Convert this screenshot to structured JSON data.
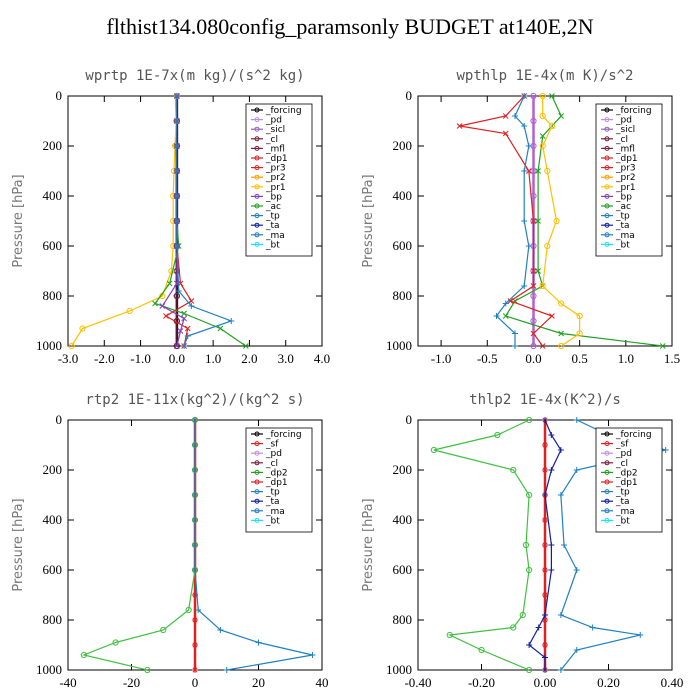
{
  "title": "flthist134.080config_paramsonly  BUDGET at140E,2N",
  "chart_data": [
    {
      "type": "line",
      "title": "wprtp  1E-7x(m kg)/(s^2 kg)",
      "ylabel": "Pressure [hPa]",
      "xlim": [
        -3.0,
        4.0
      ],
      "ylim": [
        1000,
        0
      ],
      "xticks": [
        "-3.0",
        "-2.0",
        "-1.0",
        "0.0",
        "1.0",
        "2.0",
        "3.0",
        "4.0"
      ],
      "xtick_values": [
        -3,
        -2,
        -1,
        0,
        1,
        2,
        3,
        4
      ],
      "yticks": [
        "0",
        "200",
        "400",
        "600",
        "800",
        "1000"
      ],
      "ytick_values": [
        0,
        200,
        400,
        600,
        800,
        1000
      ],
      "legend_position": "top-right",
      "legend": [
        "_forcing",
        "_pd",
        "_sicl",
        "_cl",
        "_mfl",
        "_dp1",
        "_pr3",
        "_pr2",
        "_pr1",
        "_bp",
        "_ac",
        "_tp",
        "_ta",
        "_ma",
        "_bt"
      ],
      "series": [
        {
          "name": "_forcing",
          "color": "#000000",
          "marker": "o",
          "x": [
            0,
            0,
            0,
            0,
            0,
            0,
            0,
            0,
            0,
            0,
            0
          ],
          "y": [
            0,
            100,
            200,
            300,
            400,
            500,
            600,
            700,
            800,
            900,
            1000
          ]
        },
        {
          "name": "_mfl",
          "color": "#7a2040",
          "marker": "o",
          "x": [
            0,
            0,
            0,
            0,
            0,
            0,
            0,
            0,
            0,
            0,
            0
          ],
          "y": [
            0,
            100,
            200,
            300,
            400,
            500,
            600,
            700,
            800,
            900,
            1000
          ]
        },
        {
          "name": "_pr1",
          "color": "#ffc000",
          "marker": "o",
          "x": [
            0,
            -0.02,
            -0.05,
            -0.08,
            -0.1,
            -0.1,
            -0.1,
            -0.15,
            -0.4,
            -1.3,
            -2.6,
            -2.9
          ],
          "y": [
            0,
            100,
            200,
            300,
            400,
            500,
            600,
            700,
            800,
            860,
            930,
            1000
          ]
        },
        {
          "name": "_ac",
          "color": "#20a020",
          "marker": "x",
          "x": [
            0,
            0,
            0,
            0,
            0,
            0,
            0.05,
            -0.2,
            -0.6,
            0.2,
            1.2,
            1.9
          ],
          "y": [
            0,
            100,
            200,
            300,
            400,
            500,
            600,
            750,
            830,
            870,
            930,
            1000
          ]
        },
        {
          "name": "_dp1",
          "color": "#e02020",
          "marker": "x",
          "x": [
            0,
            0,
            0,
            0,
            0,
            0,
            0,
            0.1,
            0.4,
            -0.3,
            0.3,
            0.2
          ],
          "y": [
            0,
            100,
            200,
            300,
            400,
            500,
            600,
            750,
            820,
            880,
            930,
            1000
          ]
        },
        {
          "name": "_bp",
          "color": "#8040c0",
          "marker": "x",
          "x": [
            0,
            0,
            0,
            0,
            0,
            0,
            0,
            0,
            -0.4,
            0.2,
            0.1,
            0
          ],
          "y": [
            0,
            100,
            200,
            300,
            400,
            500,
            600,
            750,
            840,
            890,
            940,
            1000
          ]
        },
        {
          "name": "_tp",
          "color": "#2080c0",
          "marker": "+",
          "x": [
            0,
            0,
            0,
            0,
            0,
            0,
            0,
            0.05,
            0.4,
            1.5,
            0.3,
            0.2
          ],
          "y": [
            0,
            100,
            200,
            300,
            400,
            500,
            600,
            780,
            840,
            900,
            960,
            1000
          ]
        }
      ]
    },
    {
      "type": "line",
      "title": "wpthlp  1E-4x(m K)/s^2",
      "ylabel": "Pressure [hPa]",
      "xlim": [
        -1.25,
        1.5
      ],
      "ylim": [
        1000,
        0
      ],
      "xticks": [
        "-1.0",
        "-0.5",
        "0.0",
        "0.5",
        "1.0",
        "1.5"
      ],
      "xtick_values": [
        -1,
        -0.5,
        0,
        0.5,
        1,
        1.5
      ],
      "yticks": [
        "0",
        "200",
        "400",
        "600",
        "800",
        "1000"
      ],
      "ytick_values": [
        0,
        200,
        400,
        600,
        800,
        1000
      ],
      "legend_position": "top-right",
      "legend": [
        "_forcing",
        "_pd",
        "_sicl",
        "_cl",
        "_mfl",
        "_dp1",
        "_pr3",
        "_pr2",
        "_pr1",
        "_bp",
        "_ac",
        "_tp",
        "_ta",
        "_ma",
        "_bt"
      ],
      "series": [
        {
          "name": "_forcing",
          "color": "#b060d0",
          "marker": "o",
          "x": [
            0,
            0,
            0,
            0,
            0,
            0,
            0,
            0,
            0,
            0,
            0
          ],
          "y": [
            0,
            100,
            200,
            300,
            400,
            500,
            600,
            700,
            800,
            900,
            1000
          ]
        },
        {
          "name": "_ac",
          "color": "#20a020",
          "marker": "x",
          "x": [
            0.2,
            0.3,
            0.2,
            0.1,
            0.05,
            0.05,
            0.05,
            0.1,
            -0.2,
            -0.3,
            0.3,
            1.4
          ],
          "y": [
            0,
            80,
            120,
            160,
            300,
            500,
            700,
            760,
            820,
            880,
            950,
            1000
          ]
        },
        {
          "name": "_dp1",
          "color": "#e02020",
          "marker": "x",
          "x": [
            -0.1,
            -0.3,
            -0.8,
            -0.3,
            -0.05,
            0,
            0,
            0,
            -0.25,
            0.2,
            0,
            0.1
          ],
          "y": [
            0,
            80,
            120,
            150,
            300,
            500,
            700,
            760,
            820,
            880,
            950,
            1000
          ]
        },
        {
          "name": "_pr1",
          "color": "#ffc000",
          "marker": "o",
          "x": [
            0.1,
            0.1,
            0.2,
            0.1,
            0.15,
            0.25,
            0.15,
            0.1,
            0.3,
            0.5,
            0.5,
            0.3
          ],
          "y": [
            0,
            80,
            120,
            200,
            300,
            500,
            600,
            760,
            830,
            880,
            950,
            1000
          ]
        },
        {
          "name": "_tp",
          "color": "#2080c0",
          "marker": "+",
          "x": [
            -0.1,
            -0.2,
            -0.1,
            -0.05,
            -0.1,
            -0.1,
            -0.05,
            -0.1,
            -0.3,
            -0.4,
            -0.2,
            -0.2
          ],
          "y": [
            0,
            80,
            120,
            200,
            300,
            500,
            600,
            760,
            830,
            880,
            950,
            1000
          ]
        }
      ]
    },
    {
      "type": "line",
      "title": "rtp2  1E-11x(kg^2)/(kg^2 s)",
      "ylabel": "Pressure [hPa]",
      "xlim": [
        -40,
        40
      ],
      "ylim": [
        1000,
        0
      ],
      "xticks": [
        "-40",
        "-20",
        "0",
        "20",
        "40"
      ],
      "xtick_values": [
        -40,
        -20,
        0,
        20,
        40
      ],
      "yticks": [
        "0",
        "200",
        "400",
        "600",
        "800",
        "1000"
      ],
      "ytick_values": [
        0,
        200,
        400,
        600,
        800,
        1000
      ],
      "legend_position": "top-right",
      "legend": [
        "_forcing",
        "_sf",
        "_pd",
        "_cl",
        "_dp2",
        "_dp1",
        "_tp",
        "_ta",
        "_ma",
        "_bt"
      ],
      "series": [
        {
          "name": "_forcing",
          "color": "#e02020",
          "marker": "*",
          "x": [
            0,
            0,
            0,
            0,
            0,
            0,
            0,
            0,
            0,
            0,
            0
          ],
          "y": [
            0,
            100,
            200,
            300,
            400,
            500,
            600,
            700,
            800,
            900,
            1000
          ]
        },
        {
          "name": "_dp1",
          "color": "#40c040",
          "marker": "o",
          "x": [
            0,
            0,
            0,
            0,
            0,
            0,
            0,
            -2,
            -10,
            -25,
            -35,
            -15
          ],
          "y": [
            0,
            100,
            200,
            300,
            400,
            500,
            600,
            760,
            840,
            890,
            940,
            1000
          ]
        },
        {
          "name": "_tp",
          "color": "#2080c0",
          "marker": "+",
          "x": [
            0,
            0,
            0,
            0,
            0,
            0,
            0,
            1,
            8,
            20,
            37,
            10
          ],
          "y": [
            0,
            100,
            200,
            300,
            400,
            500,
            600,
            760,
            840,
            890,
            940,
            1000
          ]
        }
      ]
    },
    {
      "type": "line",
      "title": "thlp2  1E-4x(K^2)/s",
      "ylabel": "Pressure [hPa]",
      "xlim": [
        -0.4,
        0.4
      ],
      "ylim": [
        1000,
        0
      ],
      "xticks": [
        "-0.40",
        "-0.20",
        "0.00",
        "0.20",
        "0.40"
      ],
      "xtick_values": [
        -0.4,
        -0.2,
        0,
        0.2,
        0.4
      ],
      "yticks": [
        "0",
        "200",
        "400",
        "600",
        "800",
        "1000"
      ],
      "ytick_values": [
        0,
        200,
        400,
        600,
        800,
        1000
      ],
      "legend_position": "top-right",
      "legend": [
        "_forcing",
        "_sf",
        "_pd",
        "_cl",
        "_dp2",
        "_dp1",
        "_tp",
        "_ta",
        "_ma",
        "_bt"
      ],
      "series": [
        {
          "name": "_forcing",
          "color": "#e02020",
          "marker": "*",
          "x": [
            0,
            0,
            0,
            0,
            0,
            0,
            0,
            0,
            0,
            0,
            0
          ],
          "y": [
            0,
            100,
            200,
            300,
            400,
            500,
            600,
            700,
            800,
            900,
            1000
          ]
        },
        {
          "name": "_dp1",
          "color": "#40c040",
          "marker": "o",
          "x": [
            -0.05,
            -0.15,
            -0.35,
            -0.1,
            -0.05,
            -0.06,
            -0.05,
            -0.07,
            -0.1,
            -0.3,
            -0.2,
            -0.05
          ],
          "y": [
            0,
            60,
            120,
            200,
            300,
            500,
            600,
            780,
            830,
            860,
            920,
            1000
          ]
        },
        {
          "name": "_tp",
          "color": "#2080c0",
          "marker": "+",
          "x": [
            0.1,
            0.2,
            0.38,
            0.1,
            0.05,
            0.06,
            0.1,
            0.05,
            0.15,
            0.3,
            0.1,
            0.05
          ],
          "y": [
            0,
            60,
            120,
            200,
            300,
            500,
            600,
            780,
            830,
            860,
            920,
            1000
          ]
        },
        {
          "name": "_ta",
          "color": "#1020a0",
          "marker": "+",
          "x": [
            0,
            0.02,
            0.05,
            0.02,
            0,
            0.02,
            0.02,
            0,
            -0.02,
            -0.05,
            0,
            0
          ],
          "y": [
            0,
            60,
            120,
            200,
            300,
            500,
            600,
            780,
            830,
            900,
            950,
            1000
          ]
        }
      ]
    }
  ]
}
